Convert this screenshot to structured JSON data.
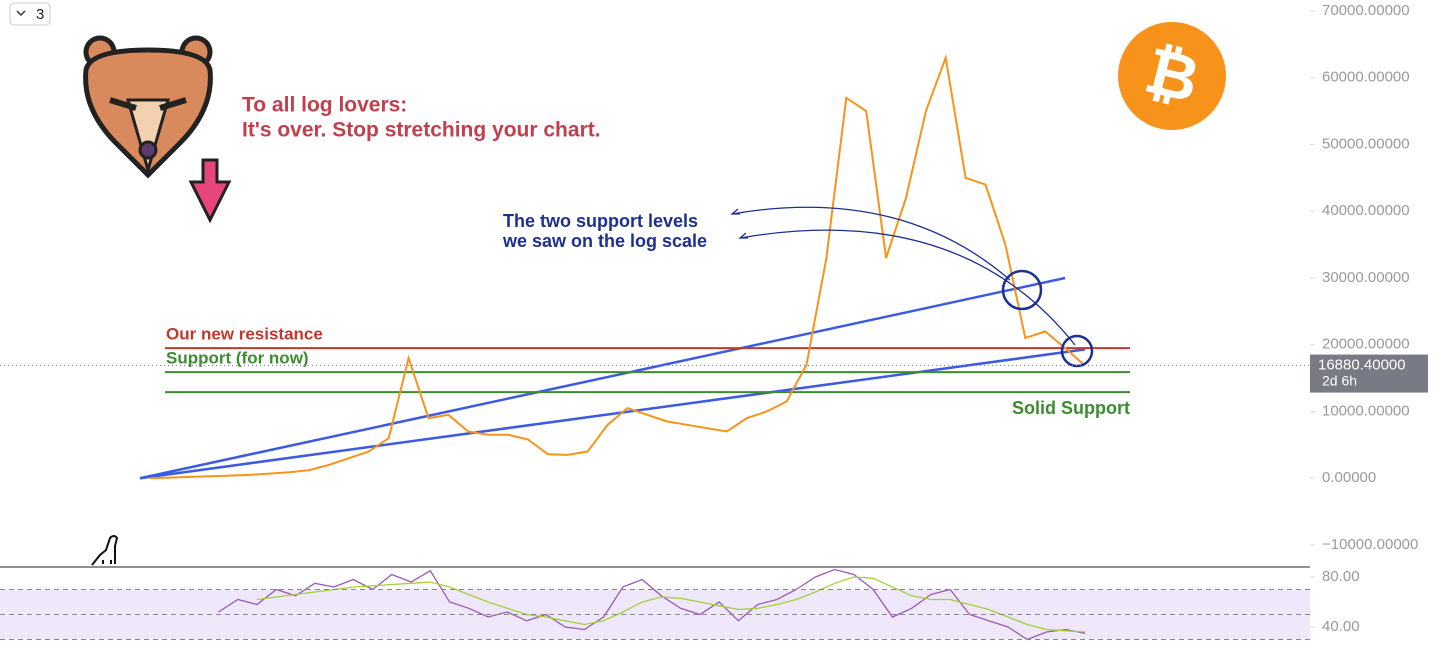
{
  "toolbar_label": "3",
  "chart_data": [
    {
      "type": "line",
      "values": [
        0,
        100,
        200,
        300,
        400,
        500,
        700,
        900,
        1200,
        2000,
        3000,
        4000,
        6000,
        18000,
        9000,
        9500,
        7000,
        6500,
        6500,
        5800,
        3600,
        3500,
        4000,
        8000,
        10500,
        9500,
        8500,
        8000,
        7500,
        7000,
        9000,
        10000,
        11500,
        17000,
        33000,
        57000,
        55000,
        33000,
        42000,
        55000,
        63000,
        45000,
        44000,
        35000,
        21000,
        22000,
        19500,
        16880
      ],
      "color": "#f7931a",
      "ylim": [
        -13000,
        71650
      ],
      "yticks": [
        {
          "value": 70000,
          "label": "70000.00000"
        },
        {
          "value": 60000,
          "label": "60000.00000"
        },
        {
          "value": 50000,
          "label": "50000.00000"
        },
        {
          "value": 40000,
          "label": "40000.00000"
        },
        {
          "value": 30000,
          "label": "30000.00000"
        },
        {
          "value": 20000,
          "label": "20000.00000"
        },
        {
          "value": 10000,
          "label": "10000.00000"
        },
        {
          "value": 0,
          "label": "0.00000"
        },
        {
          "value": -10000,
          "label": "−10000.00000"
        }
      ],
      "last_price": {
        "value": 16880.4,
        "label": "16880.40000"
      },
      "countdown": "2d 6h",
      "hlines": [
        {
          "label": "Our new resistance",
          "value": 19500,
          "color": "#c0392b"
        },
        {
          "label": "Support (for now)",
          "value": 15900,
          "color": "#3c8c2f"
        },
        {
          "label": "Solid Support",
          "value": 12900,
          "color": "#3c8c2f"
        }
      ],
      "trendlines": [
        {
          "x": [
            0,
            46
          ],
          "values": [
            0,
            30000
          ],
          "color": "#3d5be0"
        },
        {
          "x": [
            0,
            47
          ],
          "values": [
            0,
            19300
          ],
          "color": "#3d5be0"
        }
      ],
      "annotations": [
        "To all log lovers:",
        "It's over. Stop stretching your chart.",
        "The two support levels",
        "we saw on the log scale"
      ]
    },
    {
      "type": "line",
      "series": [
        {
          "color": "#9b59b6",
          "values": [
            null,
            null,
            52,
            62,
            58,
            70,
            65,
            75,
            72,
            78,
            70,
            82,
            76,
            85,
            60,
            55,
            48,
            52,
            45,
            50,
            40,
            38,
            48,
            72,
            78,
            65,
            55,
            50,
            60,
            45,
            58,
            62,
            70,
            80,
            86,
            82,
            70,
            48,
            55,
            66,
            70,
            50,
            45,
            40,
            30,
            36,
            38,
            35
          ]
        },
        {
          "color": "#a4d03a",
          "values": [
            null,
            null,
            null,
            null,
            62,
            64,
            66,
            68,
            70,
            72,
            73,
            74,
            75,
            76,
            72,
            66,
            60,
            55,
            50,
            48,
            45,
            42,
            45,
            52,
            60,
            64,
            63,
            60,
            57,
            54,
            55,
            58,
            62,
            68,
            75,
            80,
            79,
            72,
            65,
            62,
            62,
            58,
            54,
            48,
            42,
            38,
            37,
            36
          ]
        }
      ],
      "ylim": [
        14.4,
        88
      ],
      "yticks": [
        {
          "value": 80,
          "label": "80.00"
        },
        {
          "value": 40,
          "label": "40.00"
        }
      ],
      "levels": [
        70,
        50,
        30
      ]
    }
  ]
}
